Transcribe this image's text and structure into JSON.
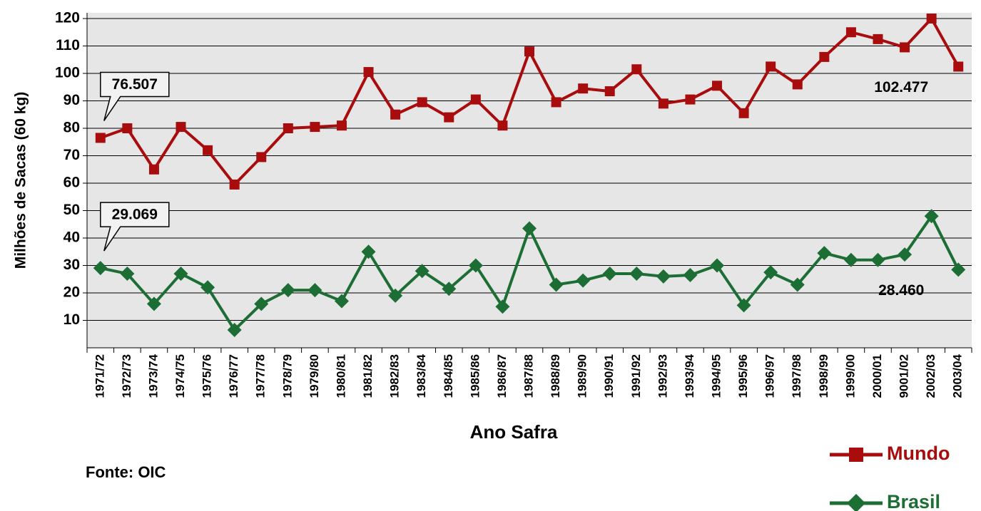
{
  "chart_data": {
    "type": "line",
    "y_label": "Milhões de Sacas (60 kg)",
    "x_label": "Ano Safra",
    "source": "Fonte: OIC",
    "categories": [
      "1971/72",
      "1972/73",
      "1973/74",
      "1974/75",
      "1975/76",
      "1976/77",
      "1977/78",
      "1978/79",
      "1979/80",
      "1980/81",
      "1981/82",
      "1982/83",
      "1983/84",
      "1984/85",
      "1985/86",
      "1986/87",
      "1987/88",
      "1988/89",
      "1989/90",
      "1990/91",
      "1991/92",
      "1992/93",
      "1993/94",
      "1994/95",
      "1995/96",
      "1996/97",
      "1997/98",
      "1998/99",
      "1999/00",
      "2000/01",
      "9001/02",
      "2002/03",
      "2003/04"
    ],
    "series": [
      {
        "name": "Mundo",
        "color": "#a80c0c",
        "marker": "square",
        "values": [
          76.507,
          80,
          65,
          80.5,
          72,
          59.5,
          69.5,
          80,
          80.5,
          81,
          100.5,
          85,
          89.5,
          84,
          90.5,
          81,
          108,
          89.5,
          94.5,
          93.5,
          101.5,
          89,
          90.5,
          95.5,
          85.5,
          102.5,
          96,
          106,
          115,
          112.5,
          109.5,
          120,
          102.477
        ],
        "value_labels": [
          "76.507",
          null,
          null,
          null,
          null,
          null,
          null,
          null,
          null,
          null,
          null,
          null,
          null,
          null,
          null,
          null,
          null,
          null,
          null,
          null,
          null,
          null,
          null,
          null,
          null,
          null,
          null,
          null,
          null,
          null,
          null,
          null,
          "102.477"
        ]
      },
      {
        "name": "Brasil",
        "color": "#1c6e35",
        "marker": "diamond",
        "values": [
          29.069,
          27,
          16,
          27,
          22,
          6.5,
          16,
          21,
          21,
          17,
          35,
          19,
          28,
          21.5,
          30,
          15,
          43.5,
          23,
          24.5,
          27,
          27,
          26,
          26.5,
          30,
          15.5,
          27.5,
          23,
          34.5,
          32,
          32,
          34,
          48,
          28.46
        ],
        "value_labels": [
          "29.069",
          null,
          null,
          null,
          null,
          null,
          null,
          null,
          null,
          null,
          null,
          null,
          null,
          null,
          null,
          null,
          null,
          null,
          null,
          null,
          null,
          null,
          null,
          null,
          null,
          null,
          null,
          null,
          null,
          null,
          null,
          null,
          "28.460"
        ]
      }
    ],
    "ylim": [
      0,
      120
    ],
    "yticks": [
      10,
      20,
      30,
      40,
      50,
      60,
      70,
      80,
      90,
      100,
      110,
      120
    ],
    "grid": true
  }
}
